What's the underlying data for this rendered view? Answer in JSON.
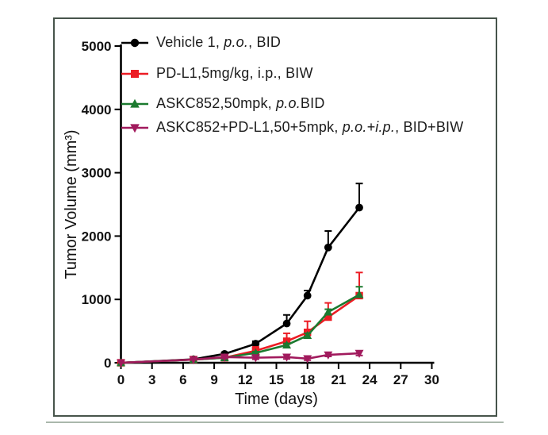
{
  "figure": {
    "background_color": "#ffffff",
    "frame_border_color": "#47544b",
    "frame_shadow_color": "#aab8ac"
  },
  "chart_data": {
    "type": "line",
    "title": "",
    "xlabel": "Time (days)",
    "ylabel": "Tumor Volume (mm³)",
    "xlim": [
      0,
      30
    ],
    "ylim": [
      0,
      5000
    ],
    "xticks": [
      0,
      3,
      6,
      9,
      12,
      15,
      18,
      21,
      24,
      27,
      30
    ],
    "yticks": [
      0,
      1000,
      2000,
      3000,
      4000,
      5000
    ],
    "grid": false,
    "legend_position": "top-left-inside",
    "x": [
      0,
      7,
      10,
      13,
      16,
      18,
      20,
      23
    ],
    "series": [
      {
        "name": "Vehicle 1, p.o., BID",
        "label_parts": [
          {
            "text": "Vehicle 1, "
          },
          {
            "text": "p.o.",
            "italic": true
          },
          {
            "text": ", BID"
          }
        ],
        "color": "#000000",
        "marker": "circle",
        "err_dir": "up",
        "values": [
          0,
          55,
          140,
          300,
          620,
          1060,
          1820,
          2450
        ],
        "err": [
          0,
          0,
          25,
          40,
          135,
          80,
          260,
          380
        ]
      },
      {
        "name": "PD-L1,5mg/kg, i.p., BIW",
        "label_parts": [
          {
            "text": "PD-L1,5mg/kg, i.p., BIW"
          }
        ],
        "color": "#ec1c24",
        "marker": "square",
        "err_dir": "up",
        "values": [
          0,
          50,
          80,
          190,
          340,
          480,
          720,
          1060
        ],
        "err": [
          0,
          0,
          15,
          60,
          125,
          175,
          225,
          365
        ]
      },
      {
        "name": "ASKC852,50mpk, p.o.BID",
        "label_parts": [
          {
            "text": "ASKC852,50mpk, "
          },
          {
            "text": "p.o.",
            "italic": true
          },
          {
            "text": "BID"
          }
        ],
        "color": "#1b7a2f",
        "marker": "triangle-up",
        "err_dir": "up",
        "values": [
          0,
          50,
          80,
          155,
          280,
          430,
          800,
          1075
        ],
        "err": [
          0,
          0,
          10,
          20,
          25,
          35,
          45,
          125
        ]
      },
      {
        "name": "ASKC852+PD-L1,50+5mpk, p.o.+i.p., BID+BIW",
        "label_parts": [
          {
            "text": "ASKC852+PD-L1,50+5mpk, "
          },
          {
            "text": "p.o.+i.p.",
            "italic": true
          },
          {
            "text": ", BID+BIW"
          }
        ],
        "color": "#a11a5d",
        "marker": "triangle-down",
        "err_dir": "down",
        "values": [
          0,
          50,
          90,
          80,
          90,
          65,
          125,
          150
        ],
        "err": [
          0,
          0,
          20,
          25,
          30,
          25,
          25,
          35
        ]
      }
    ]
  },
  "legend_row_tops": [
    19,
    58,
    96,
    126
  ]
}
